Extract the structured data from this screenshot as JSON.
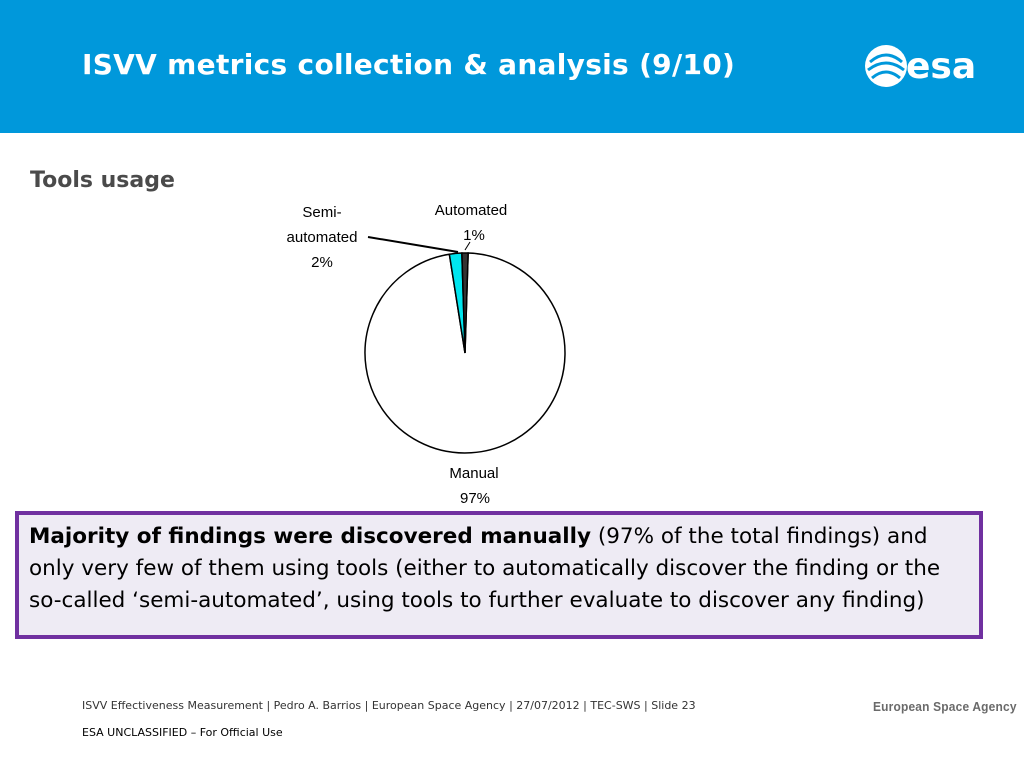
{
  "header": {
    "title": "ISVV metrics collection & analysis  (9/10)",
    "brand_color": "#0098db",
    "logo_text": "esa"
  },
  "section_title": "Tools usage",
  "chart_data": {
    "type": "pie",
    "title": "",
    "slices": [
      {
        "label": "Manual",
        "value": 97,
        "display": "97%",
        "color": "#ffffff"
      },
      {
        "label": "Semi-automated",
        "value": 2,
        "display": "2%",
        "color": "#00e5ee"
      },
      {
        "label": "Automated",
        "value": 1,
        "display": "1%",
        "color": "#333333"
      }
    ],
    "labels": {
      "semi_line1": "Semi-",
      "semi_line2": "automated",
      "semi_pct": "2%",
      "auto_line1": "Automated",
      "auto_pct": "1%",
      "manual_line1": "Manual",
      "manual_pct": "97%"
    }
  },
  "callout": {
    "bold": "Majority of findings were discovered manually",
    "rest": " (97% of the total findings) and only very few of them using tools (either to automatically discover the finding or the so-called ‘semi-automated’, using tools to further evaluate to discover any finding)",
    "border_color": "#7030a0"
  },
  "footer": {
    "line": "ISVV Effectiveness Measurement | Pedro A. Barrios | European Space Agency | 27/07/2012 | TEC-SWS | Slide  23",
    "agency": "European Space Agency",
    "classification": "ESA UNCLASSIFIED – For Official Use"
  }
}
